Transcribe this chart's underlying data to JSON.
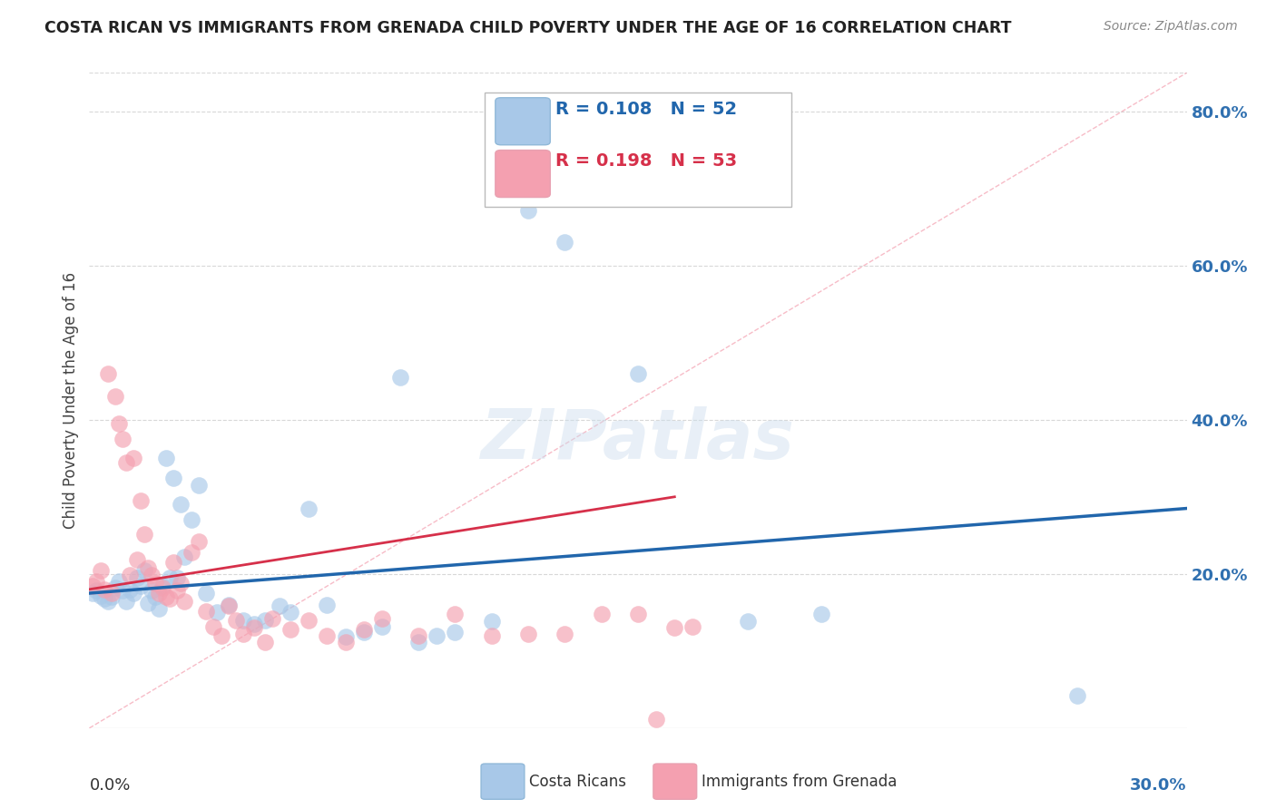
{
  "title": "COSTA RICAN VS IMMIGRANTS FROM GRENADA CHILD POVERTY UNDER THE AGE OF 16 CORRELATION CHART",
  "source": "Source: ZipAtlas.com",
  "ylabel": "Child Poverty Under the Age of 16",
  "xmin": 0.0,
  "xmax": 0.3,
  "ymin": 0.0,
  "ymax": 0.85,
  "yticks": [
    0.0,
    0.2,
    0.4,
    0.6,
    0.8
  ],
  "ytick_labels": [
    "",
    "20.0%",
    "40.0%",
    "60.0%",
    "80.0%"
  ],
  "series1_name": "Costa Ricans",
  "series1_color": "#a8c8e8",
  "series1_R": 0.108,
  "series1_N": 52,
  "series2_name": "Immigrants from Grenada",
  "series2_color": "#f4a0b0",
  "series2_R": 0.198,
  "series2_N": 53,
  "line1_x0": 0.0,
  "line1_y0": 0.175,
  "line1_x1": 0.3,
  "line1_y1": 0.285,
  "line2_x0": 0.0,
  "line2_y0": 0.18,
  "line2_x1": 0.16,
  "line2_y1": 0.3,
  "line1_color": "#2166ac",
  "line2_color": "#d6304a",
  "diagonal_color": "#f4a0b0",
  "background_color": "#ffffff",
  "grid_color": "#d8d8d8",
  "scatter1_x": [
    0.001,
    0.002,
    0.003,
    0.004,
    0.005,
    0.006,
    0.007,
    0.008,
    0.009,
    0.01,
    0.011,
    0.012,
    0.013,
    0.014,
    0.015,
    0.016,
    0.017,
    0.018,
    0.019,
    0.02,
    0.021,
    0.022,
    0.023,
    0.024,
    0.025,
    0.026,
    0.028,
    0.03,
    0.032,
    0.035,
    0.038,
    0.042,
    0.045,
    0.048,
    0.052,
    0.055,
    0.06,
    0.065,
    0.07,
    0.075,
    0.08,
    0.085,
    0.09,
    0.095,
    0.1,
    0.11,
    0.12,
    0.13,
    0.15,
    0.18,
    0.2,
    0.27
  ],
  "scatter1_y": [
    0.175,
    0.178,
    0.172,
    0.168,
    0.165,
    0.17,
    0.182,
    0.19,
    0.178,
    0.165,
    0.18,
    0.175,
    0.195,
    0.185,
    0.205,
    0.162,
    0.178,
    0.17,
    0.155,
    0.185,
    0.35,
    0.195,
    0.325,
    0.195,
    0.29,
    0.222,
    0.27,
    0.315,
    0.175,
    0.15,
    0.16,
    0.14,
    0.135,
    0.14,
    0.158,
    0.15,
    0.285,
    0.16,
    0.118,
    0.125,
    0.132,
    0.455,
    0.112,
    0.12,
    0.125,
    0.138,
    0.672,
    0.63,
    0.46,
    0.138,
    0.148,
    0.042
  ],
  "scatter2_x": [
    0.001,
    0.002,
    0.003,
    0.004,
    0.005,
    0.006,
    0.007,
    0.008,
    0.009,
    0.01,
    0.011,
    0.012,
    0.013,
    0.014,
    0.015,
    0.016,
    0.017,
    0.018,
    0.019,
    0.02,
    0.021,
    0.022,
    0.023,
    0.024,
    0.025,
    0.026,
    0.028,
    0.03,
    0.032,
    0.034,
    0.036,
    0.038,
    0.04,
    0.042,
    0.045,
    0.048,
    0.05,
    0.055,
    0.06,
    0.065,
    0.07,
    0.075,
    0.08,
    0.09,
    0.1,
    0.11,
    0.12,
    0.13,
    0.14,
    0.15,
    0.155,
    0.16,
    0.165
  ],
  "scatter2_y": [
    0.185,
    0.19,
    0.205,
    0.18,
    0.46,
    0.175,
    0.43,
    0.395,
    0.375,
    0.345,
    0.198,
    0.35,
    0.218,
    0.295,
    0.252,
    0.208,
    0.198,
    0.188,
    0.175,
    0.182,
    0.17,
    0.168,
    0.215,
    0.178,
    0.188,
    0.165,
    0.228,
    0.242,
    0.152,
    0.132,
    0.12,
    0.158,
    0.14,
    0.122,
    0.13,
    0.112,
    0.142,
    0.128,
    0.14,
    0.12,
    0.112,
    0.128,
    0.142,
    0.12,
    0.148,
    0.12,
    0.122,
    0.122,
    0.148,
    0.148,
    0.012,
    0.13,
    0.132
  ]
}
